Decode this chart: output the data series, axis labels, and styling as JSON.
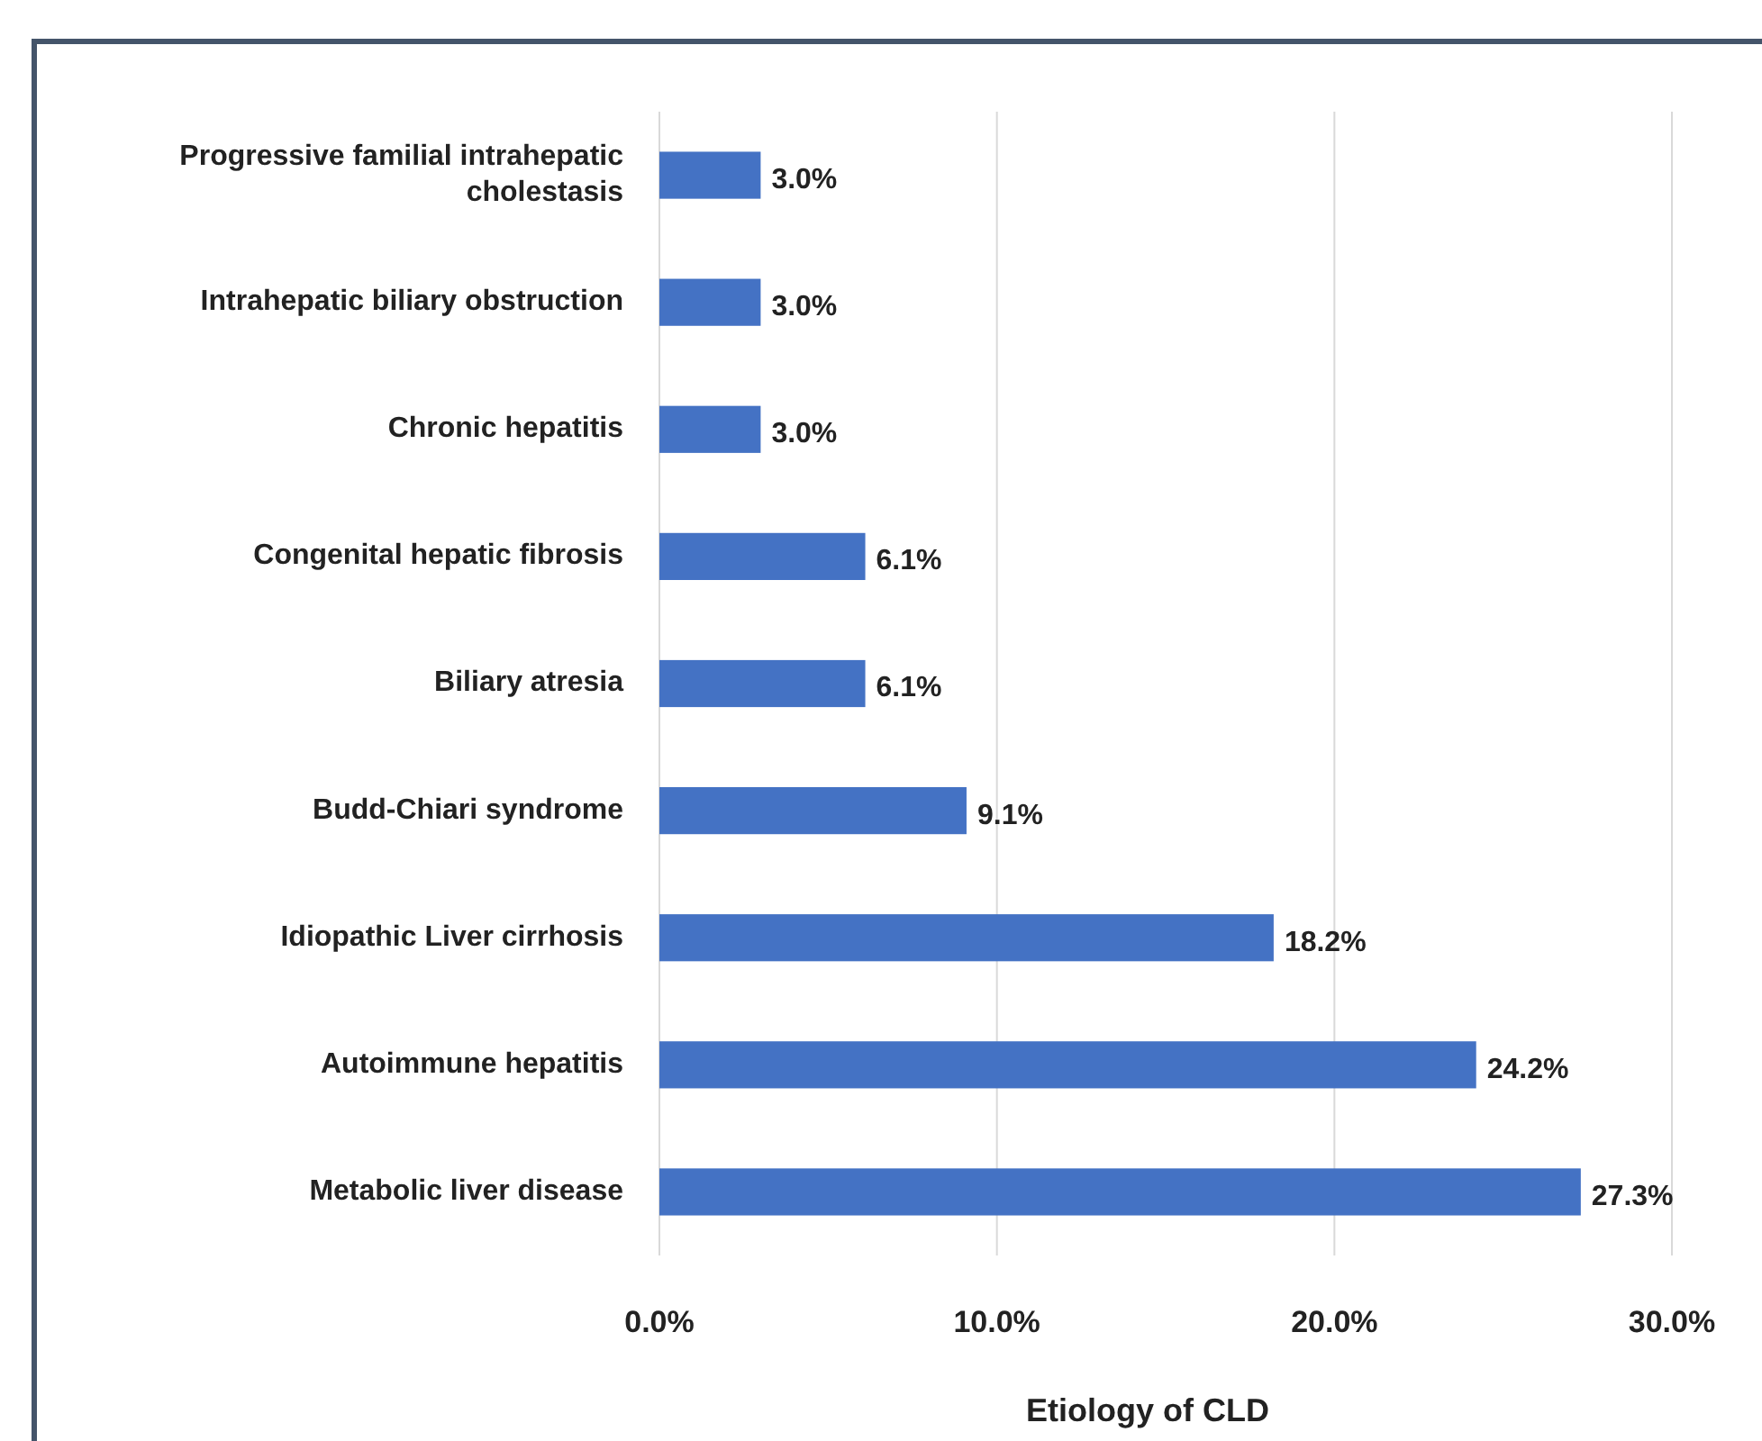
{
  "chart_data": {
    "type": "bar",
    "orientation": "horizontal",
    "xlabel": "Etiology of CLD",
    "categories": [
      "Progressive familial intrahepatic cholestasis",
      "Intrahepatic biliary obstruction",
      "Chronic hepatitis",
      "Congenital hepatic fibrosis",
      "Biliary atresia",
      "Budd-Chiari syndrome",
      "Idiopathic Liver cirrhosis",
      "Autoimmune hepatitis",
      "Metabolic liver disease"
    ],
    "values": [
      3.0,
      3.0,
      3.0,
      6.1,
      6.1,
      9.1,
      18.2,
      24.2,
      27.3
    ],
    "value_labels": [
      "3.0%",
      "3.0%",
      "3.0%",
      "6.1%",
      "6.1%",
      "9.1%",
      "18.2%",
      "24.2%",
      "27.3%"
    ],
    "color": "#4472c4",
    "xlim": [
      0,
      30
    ],
    "xticks": [
      {
        "value": 0,
        "label": "0.0%"
      },
      {
        "value": 10,
        "label": "10.0%"
      },
      {
        "value": 20,
        "label": "20.0%"
      },
      {
        "value": 30,
        "label": "30.0%"
      }
    ],
    "grid": "x"
  }
}
